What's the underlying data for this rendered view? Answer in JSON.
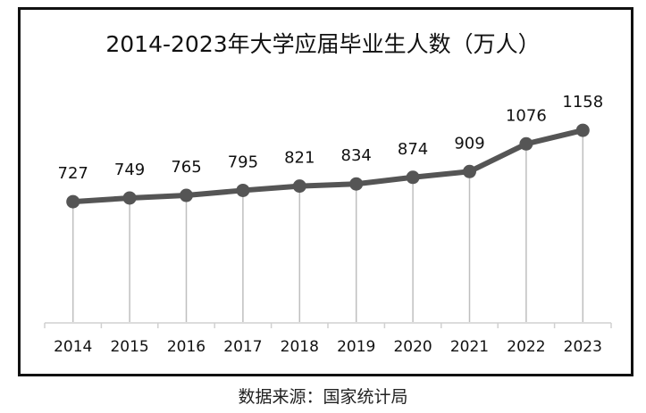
{
  "chart_data": {
    "type": "line",
    "title": "2014-2023年大学应届毕业生人数（万人）",
    "categories": [
      "2014",
      "2015",
      "2016",
      "2017",
      "2018",
      "2019",
      "2020",
      "2021",
      "2022",
      "2023"
    ],
    "values": [
      727,
      749,
      765,
      795,
      821,
      834,
      874,
      909,
      1076,
      1158
    ],
    "xlabel": "",
    "ylabel": "",
    "ylim": [
      0,
      1300
    ],
    "grid": false,
    "data_labels": true,
    "drop_lines": true,
    "colors": {
      "line": "#555555",
      "drop_line": "#bfbfbf",
      "axis": "#d0d0d0"
    }
  },
  "source": "数据来源：国家统计局"
}
